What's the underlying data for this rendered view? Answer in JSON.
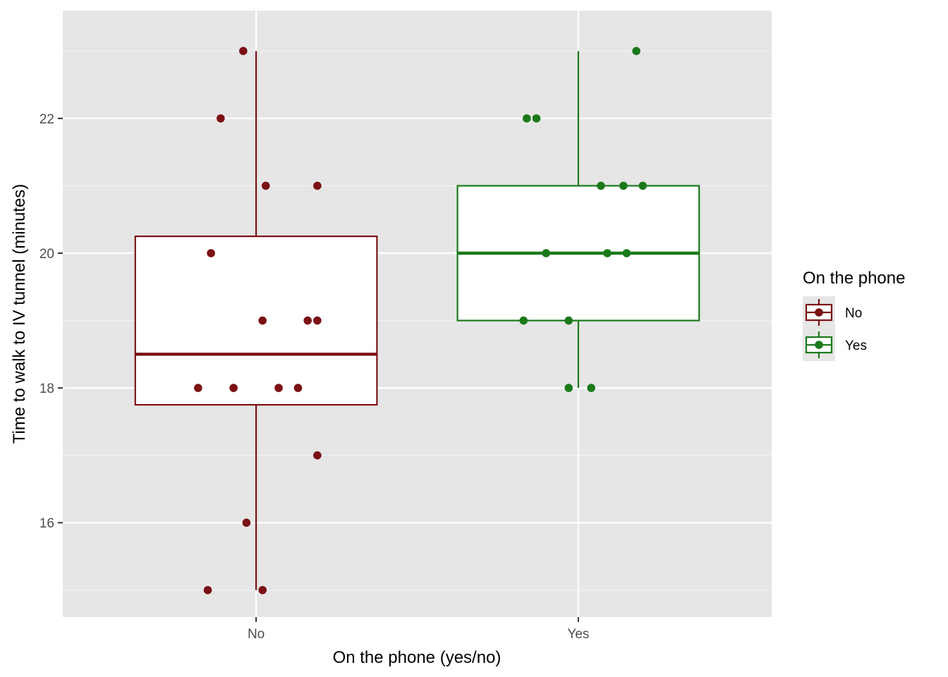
{
  "chart_data": {
    "type": "box",
    "title": "",
    "xlabel": "On the phone (yes/no)",
    "ylabel": "Time to walk to IV tunnel (minutes)",
    "categories": [
      "No",
      "Yes"
    ],
    "ylim": [
      14.6,
      23.6
    ],
    "y_ticks": [
      16,
      18,
      20,
      22
    ],
    "grid": true,
    "legend": {
      "title": "On the phone",
      "position": "right",
      "entries": [
        "No",
        "Yes"
      ]
    },
    "series": [
      {
        "name": "No",
        "color": "#7b1114",
        "box": {
          "whisker_low": 15,
          "q1": 17.75,
          "median": 18.5,
          "q3": 20.25,
          "whisker_high": 23
        },
        "points": [
          23,
          22,
          21,
          21,
          20,
          19,
          19,
          19,
          18,
          18,
          18,
          18,
          17,
          16,
          15,
          15
        ],
        "jitter": [
          -0.04,
          -0.11,
          0.03,
          0.19,
          -0.14,
          0.02,
          0.16,
          0.19,
          -0.18,
          -0.07,
          0.07,
          0.13,
          0.19,
          -0.03,
          -0.15,
          0.02
        ]
      },
      {
        "name": "Yes",
        "color": "#1a7a1a",
        "box": {
          "whisker_low": 18,
          "q1": 19,
          "median": 20,
          "q3": 21,
          "whisker_high": 23
        },
        "points": [
          23,
          22,
          22,
          21,
          21,
          21,
          20,
          20,
          20,
          19,
          19,
          18,
          18
        ],
        "jitter": [
          0.18,
          -0.16,
          -0.13,
          0.07,
          0.14,
          0.2,
          -0.1,
          0.09,
          0.15,
          -0.17,
          -0.03,
          -0.03,
          0.04
        ]
      }
    ]
  }
}
